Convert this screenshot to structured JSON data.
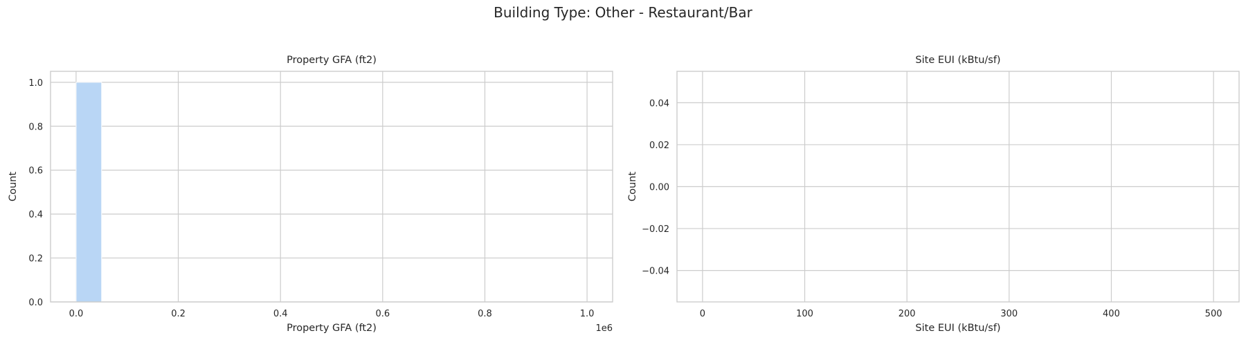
{
  "figure": {
    "title": "Building Type: Other - Restaurant/Bar"
  },
  "chart_data": [
    {
      "type": "bar",
      "title": "Property GFA (ft2)",
      "xlabel": "Property GFA (ft2)",
      "ylabel": "Count",
      "x_offset_text": "1e6",
      "xlim": [
        -50000,
        1050000
      ],
      "ylim": [
        0,
        1.05
      ],
      "x_ticks": [
        0,
        200000,
        400000,
        600000,
        800000,
        1000000
      ],
      "x_tick_labels": [
        "0.0",
        "0.2",
        "0.4",
        "0.6",
        "0.8",
        "1.0"
      ],
      "y_ticks": [
        0,
        0.2,
        0.4,
        0.6,
        0.8,
        1.0
      ],
      "y_tick_labels": [
        "0.0",
        "0.2",
        "0.4",
        "0.6",
        "0.8",
        "1.0"
      ],
      "bins": [
        {
          "x0": 0,
          "x1": 50000,
          "count": 1
        }
      ],
      "bar_color": "#b9d6f5",
      "grid": true
    },
    {
      "type": "bar",
      "title": "Site EUI (kBtu/sf)",
      "xlabel": "Site EUI (kBtu/sf)",
      "ylabel": "Count",
      "xlim": [
        -25,
        525
      ],
      "ylim": [
        -0.055,
        0.055
      ],
      "x_ticks": [
        0,
        100,
        200,
        300,
        400,
        500
      ],
      "x_tick_labels": [
        "0",
        "100",
        "200",
        "300",
        "400",
        "500"
      ],
      "y_ticks": [
        -0.04,
        -0.02,
        0.0,
        0.02,
        0.04
      ],
      "y_tick_labels": [
        "−0.04",
        "−0.02",
        "0.00",
        "0.02",
        "0.04"
      ],
      "bins": [],
      "bar_color": "#b9d6f5",
      "grid": true
    }
  ]
}
